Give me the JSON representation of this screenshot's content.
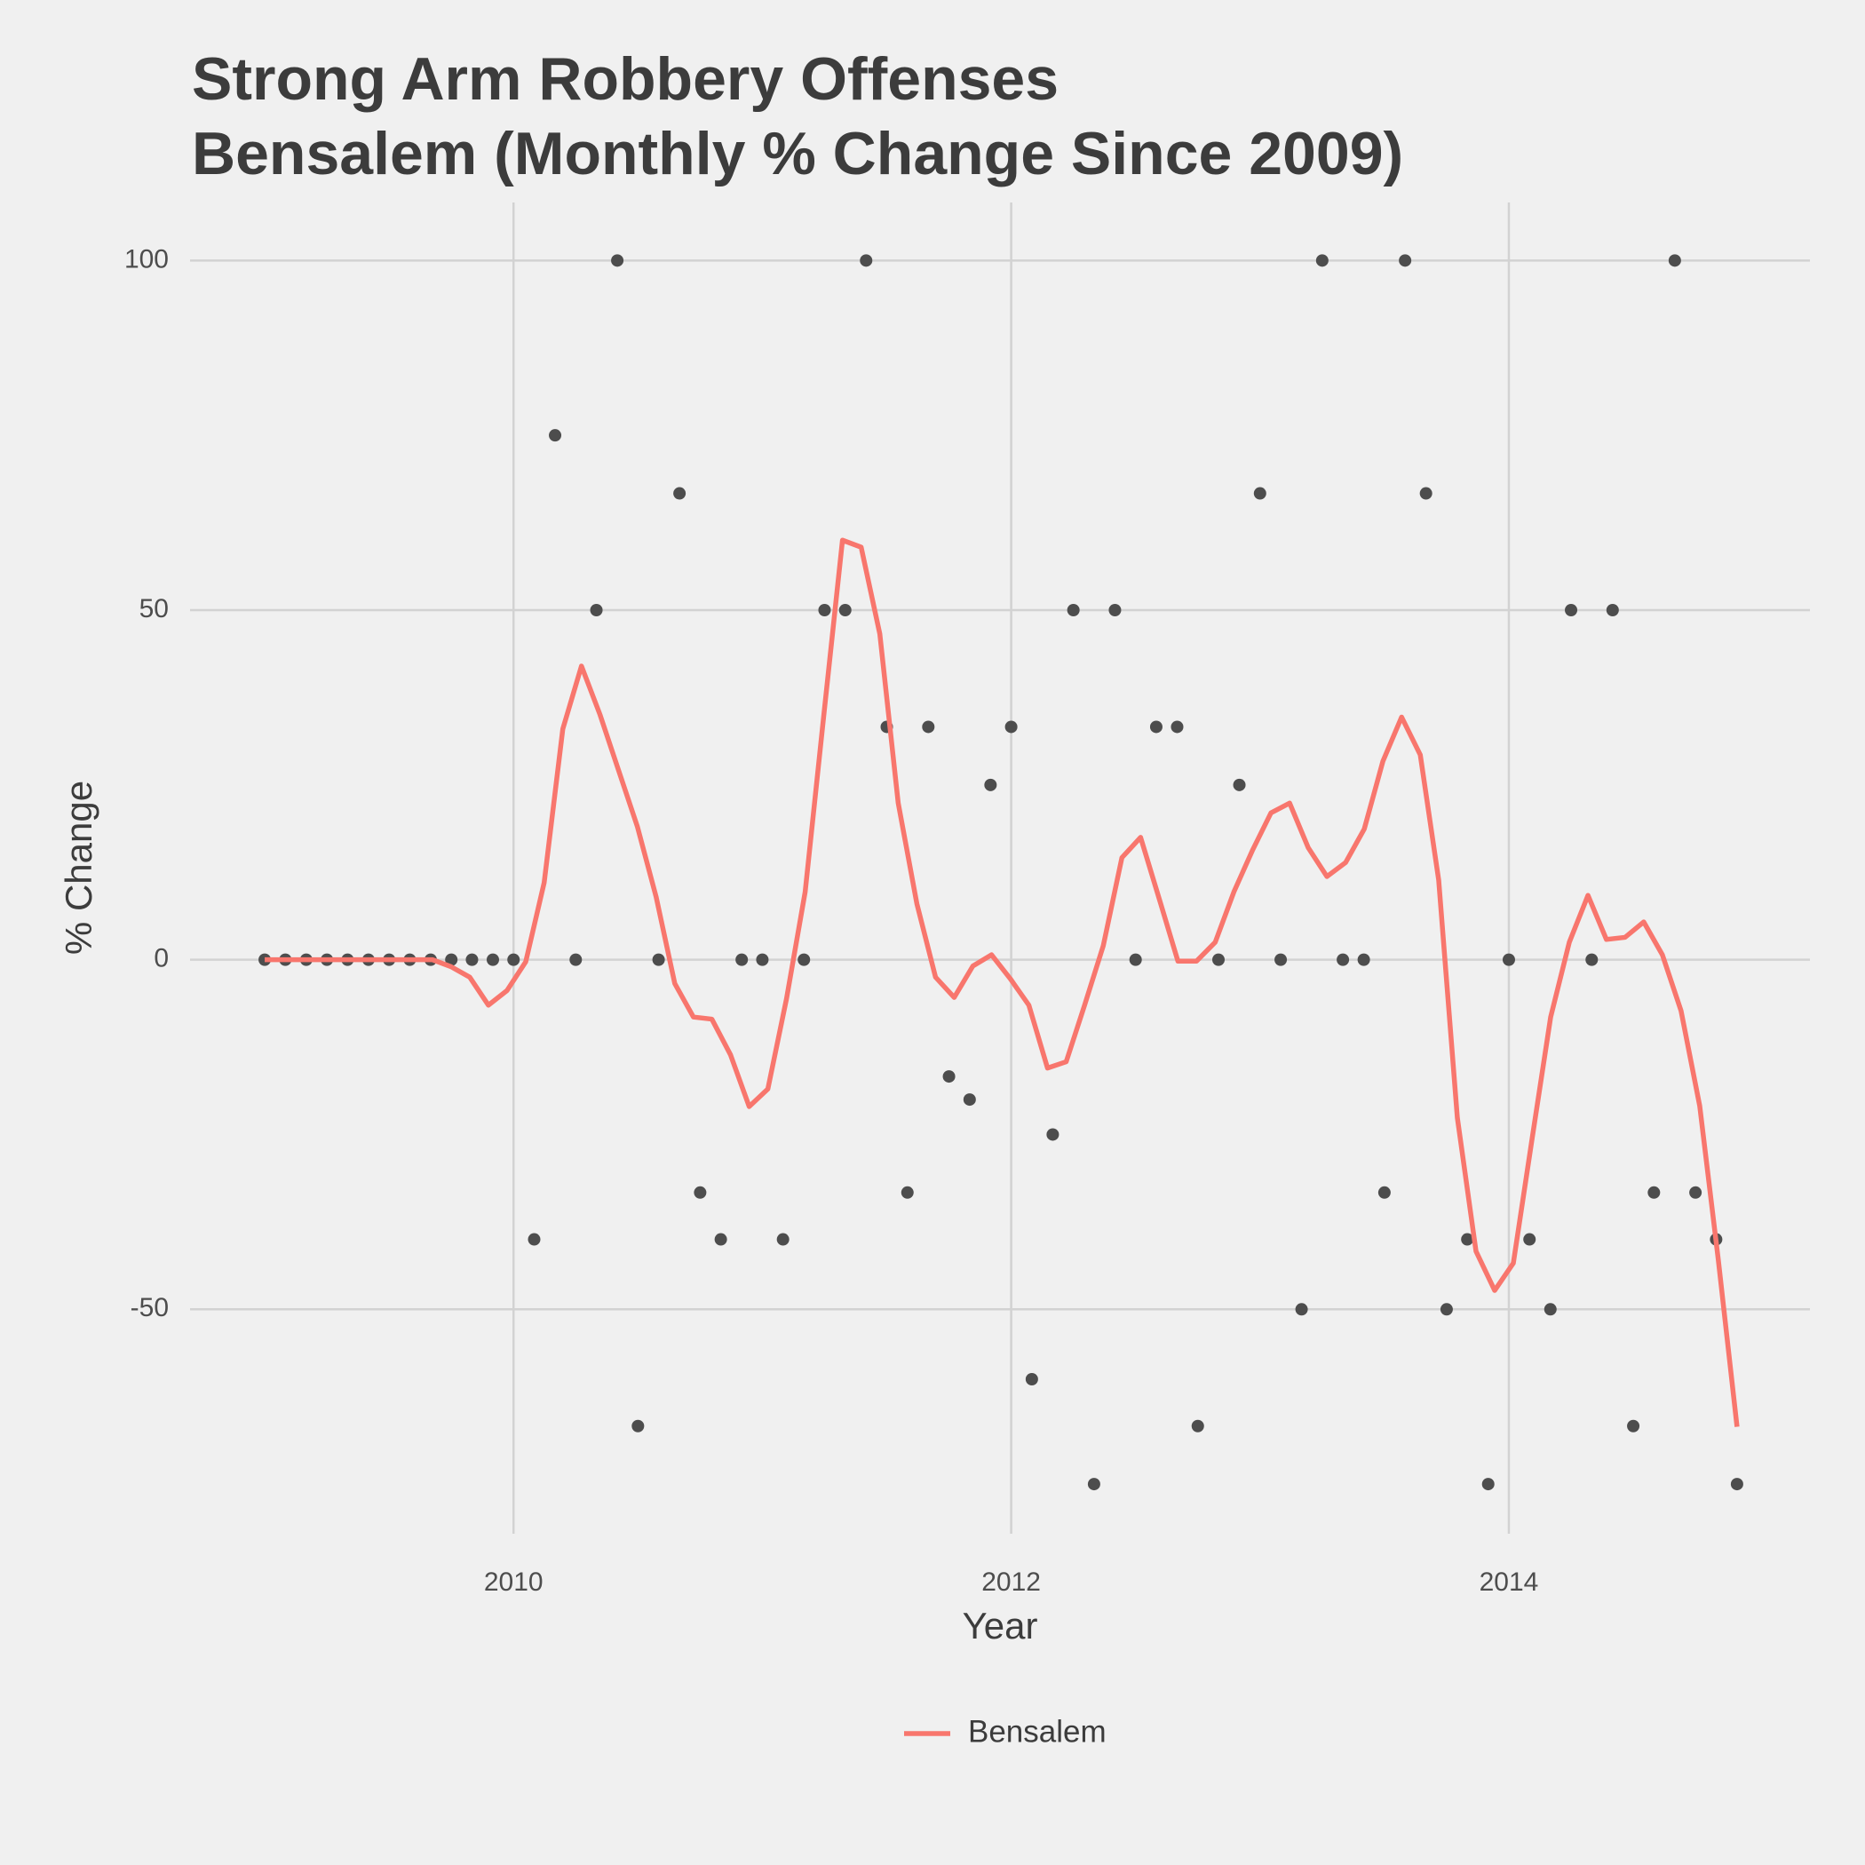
{
  "chart_data": {
    "type": "line",
    "title": "Strong Arm Robbery Offenses",
    "subtitle": "Bensalem (Monthly % Change Since 2009)",
    "x_label": "Year",
    "y_label": "% Change",
    "xlim": [
      2008.7,
      2015.21
    ],
    "ylim": [
      -82.1,
      108.3
    ],
    "xticks": [
      2010,
      2012,
      2014
    ],
    "yticks": [
      -50,
      0,
      50,
      100
    ],
    "grid": true,
    "legend": "bottom",
    "series": [
      {
        "name": "Bensalem",
        "color": "#f8766d",
        "x": [
          2009.0,
          2009.075,
          2009.15,
          2009.225,
          2009.3,
          2009.374,
          2009.449,
          2009.524,
          2009.599,
          2009.674,
          2009.749,
          2009.824,
          2009.899,
          2009.974,
          2010.049,
          2010.123,
          2010.198,
          2010.273,
          2010.348,
          2010.423,
          2010.498,
          2010.573,
          2010.648,
          2010.723,
          2010.797,
          2010.872,
          2010.947,
          2011.022,
          2011.097,
          2011.172,
          2011.247,
          2011.322,
          2011.397,
          2011.472,
          2011.546,
          2011.621,
          2011.696,
          2011.771,
          2011.846,
          2011.921,
          2011.996,
          2012.071,
          2012.146,
          2012.221,
          2012.295,
          2012.37,
          2012.445,
          2012.52,
          2012.595,
          2012.67,
          2012.745,
          2012.82,
          2012.895,
          2012.969,
          2013.044,
          2013.119,
          2013.194,
          2013.269,
          2013.344,
          2013.419,
          2013.494,
          2013.569,
          2013.644,
          2013.718,
          2013.793,
          2013.868,
          2013.943,
          2014.018,
          2014.093,
          2014.168,
          2014.243,
          2014.318,
          2014.392,
          2014.467,
          2014.542,
          2014.617,
          2014.692,
          2014.767,
          2014.842,
          2014.917
        ],
        "values": [
          0,
          0,
          0,
          0,
          0,
          0,
          0,
          0,
          0,
          0,
          -1,
          -2.5,
          -6.5,
          -4.4,
          -0.3,
          11,
          33,
          42,
          35,
          27,
          19,
          9,
          -3.4,
          -8.2,
          -8.5,
          -13.6,
          -21,
          -18.5,
          -5.6,
          9.7,
          35,
          60,
          59,
          46.6,
          22.4,
          8,
          -2.5,
          -5.4,
          -0.9,
          0.7,
          -2.7,
          -6.5,
          -15.5,
          -14.6,
          -6.5,
          2,
          14.6,
          17.5,
          8.7,
          -0.2,
          -0.2,
          2.5,
          9.7,
          15.6,
          21,
          22.4,
          16,
          11.9,
          13.9,
          18.7,
          28.4,
          34.7,
          29.3,
          11.4,
          -22.6,
          -41.7,
          -47.3,
          -43.4,
          -25.7,
          -8.2,
          2.5,
          9.2,
          2.9,
          3.2,
          5.4,
          0.7,
          -7.3,
          -20.9,
          -43,
          -66.8
        ]
      }
    ],
    "points": {
      "type": "scatter",
      "color": "#4d4d4d",
      "x": [
        2009.0,
        2009.083,
        2009.167,
        2009.25,
        2009.333,
        2009.417,
        2009.5,
        2009.583,
        2009.667,
        2009.75,
        2009.833,
        2009.917,
        2010.0,
        2010.083,
        2010.167,
        2010.25,
        2010.333,
        2010.417,
        2010.5,
        2010.583,
        2010.667,
        2010.75,
        2010.833,
        2010.917,
        2011.0,
        2011.083,
        2011.167,
        2011.25,
        2011.333,
        2011.417,
        2011.5,
        2011.583,
        2011.667,
        2011.75,
        2011.833,
        2011.917,
        2012.0,
        2012.083,
        2012.167,
        2012.25,
        2012.333,
        2012.417,
        2012.5,
        2012.583,
        2012.667,
        2012.75,
        2012.833,
        2012.917,
        2013.0,
        2013.083,
        2013.167,
        2013.25,
        2013.333,
        2013.417,
        2013.5,
        2013.583,
        2013.667,
        2013.75,
        2013.833,
        2013.917,
        2014.0,
        2014.083,
        2014.167,
        2014.25,
        2014.333,
        2014.417,
        2014.5,
        2014.583,
        2014.667,
        2014.75,
        2014.833,
        2014.917
      ],
      "values": [
        0,
        0,
        0,
        0,
        0,
        0,
        0,
        0,
        0,
        0,
        0,
        0,
        0,
        -40,
        75,
        0,
        50,
        100,
        -66.7,
        0,
        66.7,
        -33.3,
        -40,
        0,
        0,
        -40,
        0,
        50,
        50,
        100,
        33.3,
        -33.3,
        33.3,
        -16.7,
        -20,
        25,
        33.3,
        -60,
        -25,
        50,
        -75,
        50,
        0,
        33.3,
        33.3,
        -66.7,
        0,
        25,
        66.7,
        0,
        -50,
        100,
        0,
        0,
        -33.3,
        100,
        66.7,
        -50,
        -40,
        -75,
        0,
        -40,
        -50,
        50,
        0,
        50,
        -66.7,
        -33.3,
        100,
        -33.3,
        -40,
        -75
      ]
    }
  }
}
